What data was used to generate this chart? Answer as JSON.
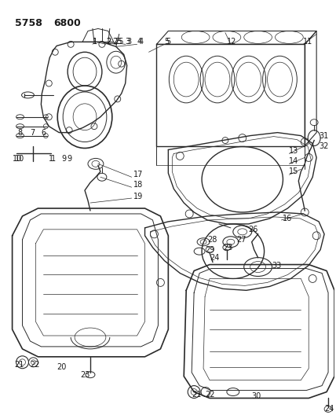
{
  "bg_color": "#ffffff",
  "line_color": "#2a2a2a",
  "text_color": "#1a1a1a",
  "figsize": [
    4.28,
    5.33
  ],
  "dpi": 100,
  "code1": "5758",
  "code2": "6800"
}
